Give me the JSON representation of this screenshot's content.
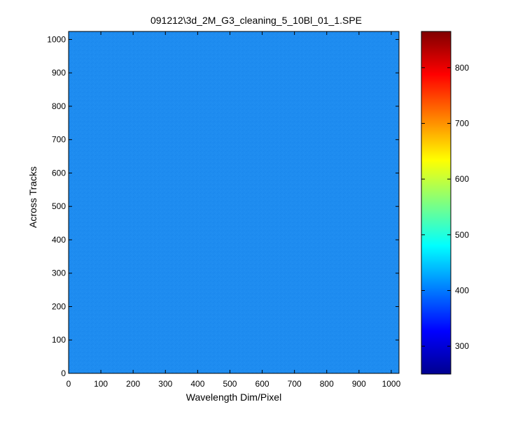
{
  "chart_data": {
    "type": "heatmap",
    "title": "091212\\3d_2M_G3_cleaning_5_10Bl_01_1.SPE",
    "xlabel": "Wavelength Dim/Pixel",
    "ylabel": "Across Tracks",
    "xlim": [
      0,
      1024
    ],
    "ylim": [
      0,
      1024
    ],
    "x_ticks": [
      0,
      100,
      200,
      300,
      400,
      500,
      600,
      700,
      800,
      900,
      1000
    ],
    "y_ticks": [
      0,
      100,
      200,
      300,
      400,
      500,
      600,
      700,
      800,
      900,
      1000
    ],
    "colormap": "jet",
    "color_range": [
      250,
      865
    ],
    "colorbar_ticks": [
      300,
      400,
      500,
      600,
      700,
      800
    ],
    "typical_value": 410,
    "fill_color": "#1e8cf0",
    "grid": false
  }
}
